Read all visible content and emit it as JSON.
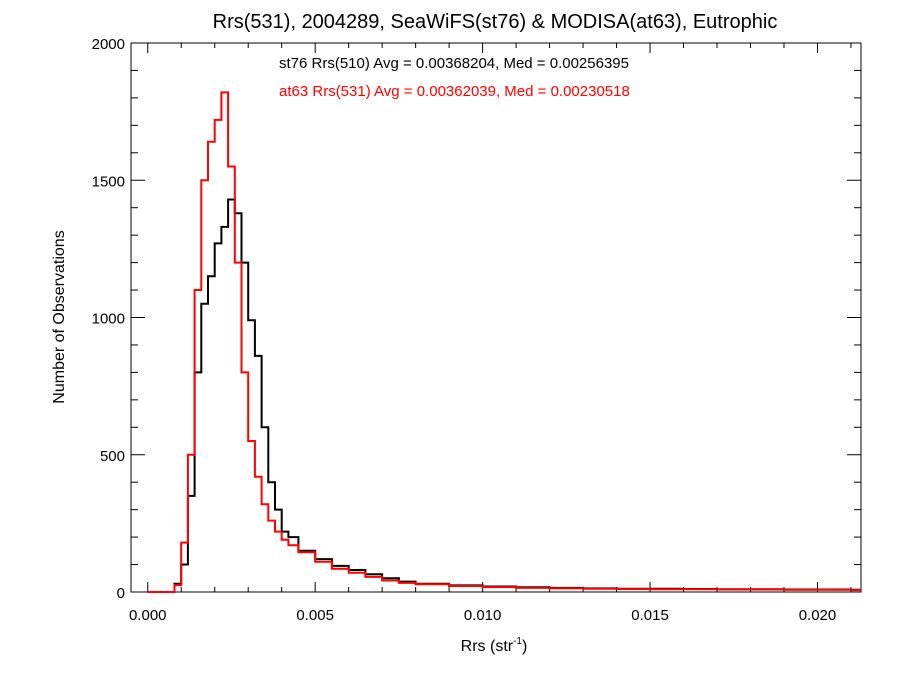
{
  "chart_data": {
    "type": "line",
    "title": "Rrs(531), 2004289, SeaWiFS(st76) & MODISA(at63), Eutrophic",
    "xlabel": "Rrs (str",
    "xlabel_sup": "-1",
    "xlabel_tail": ")",
    "ylabel": "Number of Observations",
    "xlim": [
      -0.0005,
      0.0213
    ],
    "ylim": [
      0,
      2000
    ],
    "xticks": [
      0.0,
      0.005,
      0.01,
      0.015,
      0.02
    ],
    "xtick_labels": [
      "0.000",
      "0.005",
      "0.010",
      "0.015",
      "0.020"
    ],
    "yticks": [
      0,
      500,
      1000,
      1500,
      2000
    ],
    "ytick_labels": [
      "0",
      "500",
      "1000",
      "1500",
      "2000"
    ],
    "grid": false,
    "series": [
      {
        "name": "st76 Rrs(510) Avg = 0.00368204, Med = 0.00256395",
        "color": "#000000",
        "x": [
          0.0,
          0.0008,
          0.001,
          0.0012,
          0.0014,
          0.0016,
          0.0018,
          0.002,
          0.0022,
          0.0024,
          0.0026,
          0.0028,
          0.003,
          0.0032,
          0.0034,
          0.0036,
          0.0038,
          0.004,
          0.0042,
          0.0045,
          0.005,
          0.0055,
          0.006,
          0.0065,
          0.007,
          0.0075,
          0.008,
          0.009,
          0.01,
          0.011,
          0.012,
          0.013,
          0.014,
          0.015,
          0.016,
          0.017,
          0.018,
          0.019,
          0.02,
          0.021
        ],
        "y": [
          0,
          30,
          100,
          350,
          800,
          1050,
          1150,
          1270,
          1330,
          1430,
          1380,
          1200,
          990,
          860,
          600,
          400,
          300,
          220,
          200,
          150,
          120,
          95,
          80,
          65,
          50,
          38,
          30,
          24,
          20,
          17,
          15,
          13,
          12,
          12,
          11,
          10,
          10,
          9,
          9,
          8
        ]
      },
      {
        "name": "at63 Rrs(531) Avg = 0.00362039, Med = 0.00230518",
        "color": "#ff0000",
        "x": [
          0.0,
          0.0008,
          0.001,
          0.0012,
          0.0014,
          0.0016,
          0.0018,
          0.002,
          0.0022,
          0.0024,
          0.0026,
          0.0028,
          0.003,
          0.0032,
          0.0034,
          0.0036,
          0.0038,
          0.004,
          0.0042,
          0.0045,
          0.005,
          0.0055,
          0.006,
          0.0065,
          0.007,
          0.0075,
          0.008,
          0.009,
          0.01,
          0.011,
          0.012,
          0.013,
          0.014,
          0.015,
          0.016,
          0.017,
          0.018,
          0.019,
          0.02,
          0.021
        ],
        "y": [
          0,
          25,
          180,
          500,
          1100,
          1500,
          1640,
          1720,
          1820,
          1550,
          1200,
          800,
          550,
          420,
          320,
          260,
          220,
          190,
          170,
          145,
          110,
          85,
          70,
          55,
          42,
          33,
          28,
          22,
          18,
          15,
          13,
          12,
          11,
          10,
          10,
          9,
          9,
          8,
          8,
          7
        ]
      }
    ]
  }
}
